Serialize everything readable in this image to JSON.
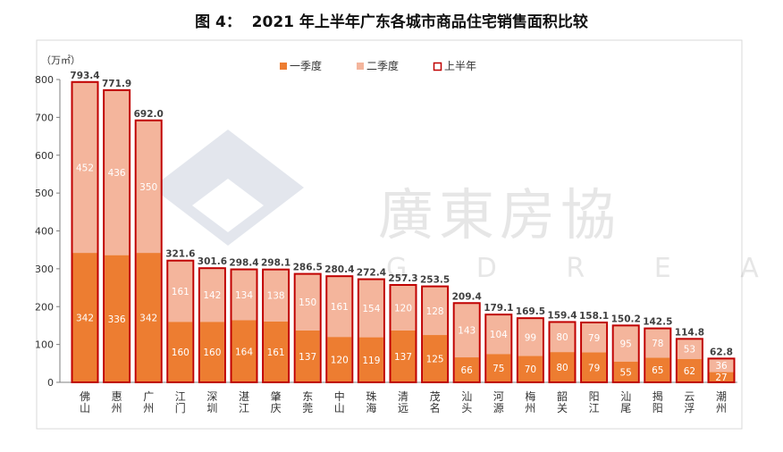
{
  "chart_data": {
    "type": "bar",
    "title": "图 4：  2021 年上半年广东各城市商品住宅销售面积比较",
    "ylabel": "（万㎡）",
    "ylim": [
      0,
      800
    ],
    "yticks": [
      0,
      100,
      200,
      300,
      400,
      500,
      600,
      700,
      800
    ],
    "categories": [
      "佛山",
      "惠州",
      "广州",
      "江门",
      "深圳",
      "湛江",
      "肇庆",
      "东莞",
      "中山",
      "珠海",
      "清远",
      "茂名",
      "汕头",
      "河源",
      "梅州",
      "韶关",
      "阳江",
      "汕尾",
      "揭阳",
      "云浮",
      "潮州"
    ],
    "series": [
      {
        "name": "一季度",
        "color": "#ED7D31",
        "values": [
          342,
          336,
          342,
          160,
          160,
          164,
          161,
          137,
          120,
          119,
          137,
          125,
          66,
          75,
          70,
          80,
          79,
          55,
          65,
          62,
          27
        ]
      },
      {
        "name": "二季度",
        "color": "#F4B59C",
        "values": [
          452,
          436,
          350,
          161,
          142,
          134,
          138,
          150,
          161,
          154,
          120,
          128,
          143,
          104,
          99,
          80,
          79,
          95,
          78,
          53,
          36
        ]
      },
      {
        "name": "上半年",
        "color": "#C00000",
        "values": [
          793.4,
          771.9,
          692.0,
          321.6,
          301.6,
          298.4,
          298.1,
          286.5,
          280.4,
          272.4,
          257.3,
          253.5,
          209.4,
          179.1,
          169.5,
          159.4,
          158.1,
          150.2,
          142.5,
          114.8,
          62.8
        ]
      }
    ],
    "legend_position": "top",
    "watermark": {
      "text_cn": "廣東房協",
      "text_en": "G D R E A"
    }
  }
}
